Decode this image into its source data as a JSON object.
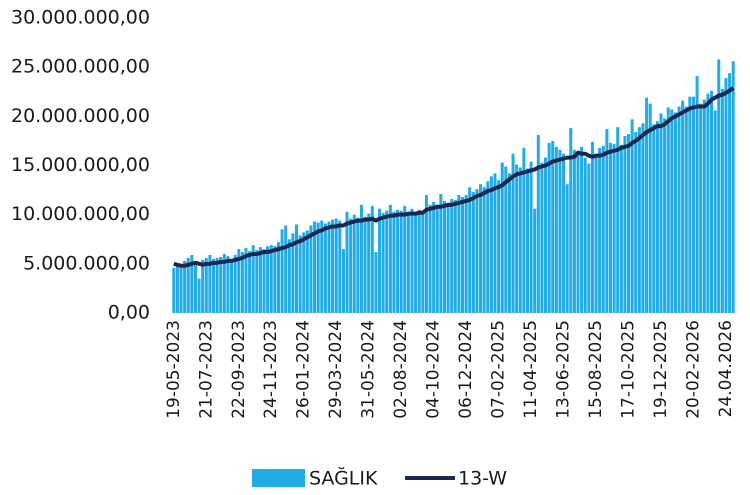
{
  "chart_data": {
    "type": "bar",
    "categories": [
      "19-05-2023",
      null,
      null,
      null,
      null,
      null,
      null,
      null,
      null,
      "21-07-2023",
      null,
      null,
      null,
      null,
      null,
      null,
      null,
      null,
      "22-09-2023",
      null,
      null,
      null,
      null,
      null,
      null,
      null,
      null,
      "24-11-2023",
      null,
      null,
      null,
      null,
      null,
      null,
      null,
      null,
      "26-01-2024",
      null,
      null,
      null,
      null,
      null,
      null,
      null,
      null,
      "29-03-2024",
      null,
      null,
      null,
      null,
      null,
      null,
      null,
      null,
      "31-05-2024",
      null,
      null,
      null,
      null,
      null,
      null,
      null,
      null,
      "02-08-2024",
      null,
      null,
      null,
      null,
      null,
      null,
      null,
      null,
      "04-10-2024",
      null,
      null,
      null,
      null,
      null,
      null,
      null,
      null,
      "06-12-2024",
      null,
      null,
      null,
      null,
      null,
      null,
      null,
      null,
      "07-02-2025",
      null,
      null,
      null,
      null,
      null,
      null,
      null,
      null,
      "11-04-2025",
      null,
      null,
      null,
      null,
      null,
      null,
      null,
      null,
      "13-06-2025",
      null,
      null,
      null,
      null,
      null,
      null,
      null,
      null,
      "15-08-2025",
      null,
      null,
      null,
      null,
      null,
      null,
      null,
      null,
      "17-10-2025",
      null,
      null,
      null,
      null,
      null,
      null,
      null,
      null,
      "19-12-2025",
      null,
      null,
      null,
      null,
      null,
      null,
      null,
      null,
      "20-02-2026",
      null,
      null,
      null,
      null,
      null,
      null,
      null,
      null,
      "24.04.2026",
      null,
      null
    ],
    "series": [
      {
        "name": "SAĞLIK",
        "type": "bar",
        "color": "#22ace6",
        "values": [
          4600000,
          4800000,
          5000000,
          5300000,
          5600000,
          5900000,
          5200000,
          3500000,
          5400000,
          5600000,
          5900000,
          5500000,
          5600000,
          5700000,
          6000000,
          5800000,
          5500000,
          5900000,
          6500000,
          6200000,
          6600000,
          6300000,
          6900000,
          6400000,
          6700000,
          6500000,
          6800000,
          6900000,
          6800000,
          7200000,
          8500000,
          8900000,
          7500000,
          8100000,
          9000000,
          7900000,
          8200000,
          8400000,
          8900000,
          9300000,
          9200000,
          9400000,
          9100000,
          9300000,
          9500000,
          9600000,
          9400000,
          6500000,
          10300000,
          9600000,
          10000000,
          9700000,
          11000000,
          9800000,
          10100000,
          10900000,
          6200000,
          10600000,
          10200000,
          10400000,
          11000000,
          10300000,
          10500000,
          10400000,
          10900000,
          10200000,
          10600000,
          10300000,
          10500000,
          10400000,
          12000000,
          11000000,
          11300000,
          11000000,
          12100000,
          11400000,
          11200000,
          11600000,
          11500000,
          12000000,
          11800000,
          12000000,
          12800000,
          12300000,
          12600000,
          13100000,
          12800000,
          13400000,
          13900000,
          14200000,
          13500000,
          15300000,
          14900000,
          14200000,
          16200000,
          15100000,
          14800000,
          16800000,
          14700000,
          15400000,
          10600000,
          18100000,
          15300000,
          15800000,
          17300000,
          17500000,
          16900000,
          16600000,
          16200000,
          13100000,
          18800000,
          16600000,
          16500000,
          16900000,
          15800000,
          15200000,
          17400000,
          16200000,
          16800000,
          17000000,
          18700000,
          17300000,
          17200000,
          18900000,
          17100000,
          18000000,
          18200000,
          19700000,
          18400000,
          18900000,
          19300000,
          21900000,
          21300000,
          19200000,
          19500000,
          20300000,
          19800000,
          20900000,
          20700000,
          20400000,
          21000000,
          21600000,
          21000000,
          22000000,
          22000000,
          24100000,
          21300000,
          21700000,
          22300000,
          22600000,
          20600000,
          25800000,
          22800000,
          23900000,
          24400000,
          25600000
        ]
      },
      {
        "name": "13-W",
        "type": "line",
        "color": "#1c2750",
        "values": [
          5000000,
          4900000,
          4800000,
          4800000,
          4900000,
          5000000,
          5100000,
          5000000,
          4900000,
          5000000,
          5000000,
          5100000,
          5100000,
          5200000,
          5200000,
          5300000,
          5300000,
          5400000,
          5500000,
          5600000,
          5800000,
          5900000,
          6000000,
          6000000,
          6100000,
          6200000,
          6200000,
          6300000,
          6400000,
          6500000,
          6600000,
          6700000,
          6900000,
          7000000,
          7200000,
          7300000,
          7500000,
          7700000,
          7900000,
          8100000,
          8300000,
          8400000,
          8600000,
          8700000,
          8800000,
          8800000,
          8900000,
          8900000,
          9100000,
          9200000,
          9300000,
          9400000,
          9400000,
          9500000,
          9500000,
          9600000,
          9400000,
          9600000,
          9700000,
          9800000,
          9900000,
          9900000,
          10000000,
          10000000,
          10000000,
          10100000,
          10100000,
          10100000,
          10200000,
          10200000,
          10500000,
          10600000,
          10700000,
          10800000,
          10800000,
          10900000,
          11000000,
          11000000,
          11100000,
          11200000,
          11300000,
          11400000,
          11500000,
          11700000,
          11900000,
          12000000,
          12200000,
          12400000,
          12500000,
          12700000,
          12800000,
          13000000,
          13300000,
          13600000,
          13900000,
          14100000,
          14200000,
          14300000,
          14400000,
          14500000,
          14600000,
          14800000,
          14900000,
          15000000,
          15200000,
          15400000,
          15500000,
          15600000,
          15700000,
          15800000,
          15800000,
          15900000,
          16300000,
          16200000,
          16200000,
          16000000,
          15900000,
          16000000,
          16000000,
          16100000,
          16300000,
          16400000,
          16500000,
          16600000,
          16800000,
          16900000,
          17000000,
          17300000,
          17500000,
          17800000,
          18100000,
          18400000,
          18600000,
          18800000,
          19000000,
          19000000,
          19200000,
          19500000,
          19800000,
          20000000,
          20200000,
          20400000,
          20600000,
          20800000,
          20900000,
          21000000,
          21000000,
          21000000,
          21300000,
          21700000,
          21900000,
          22100000,
          22200000,
          22400000,
          22600000,
          22900000
        ]
      }
    ],
    "ylim": [
      0,
      30000000
    ],
    "yticks": [
      {
        "value": 0,
        "label": "0,00"
      },
      {
        "value": 5000000,
        "label": "5.000.000,00"
      },
      {
        "value": 10000000,
        "label": "10.000.000,00"
      },
      {
        "value": 15000000,
        "label": "15.000.000,00"
      },
      {
        "value": 20000000,
        "label": "20.000.000,00"
      },
      {
        "value": 25000000,
        "label": "25.000.000,00"
      },
      {
        "value": 30000000,
        "label": "30.000.000,00"
      }
    ],
    "grid": false,
    "legend": "bottom"
  }
}
